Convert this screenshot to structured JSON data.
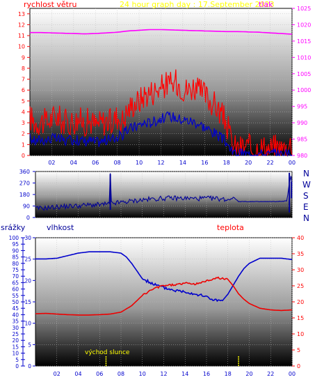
{
  "header": {
    "title": "24 hour graph day : 17.September 2023",
    "wind_label": "rychlost větru",
    "pressure_label": "tlak"
  },
  "compass": [
    "N",
    "W",
    "S",
    "E",
    "N"
  ],
  "bottom_labels": {
    "rain": "srážky",
    "humidity": "vlhkost",
    "temperature": "teplota",
    "sunrise": "východ slunce"
  },
  "colors": {
    "wind": "#ff0000",
    "wind_avg": "#0000cc",
    "pressure": "#ff00ff",
    "direction": "#000099",
    "humidity": "#0000cc",
    "temperature": "#ee0000",
    "sun_marker": "#ffff00",
    "tick_red": "#ff0000",
    "tick_magenta": "#ff00ff",
    "tick_blue": "#0000cc"
  },
  "chart_data": [
    {
      "type": "line",
      "x_ticks": [
        "02",
        "04",
        "06",
        "08",
        "10",
        "12",
        "14",
        "16",
        "18",
        "20",
        "22",
        "00"
      ],
      "y_left_ticks": [
        "0",
        "1",
        "2",
        "3",
        "4",
        "5",
        "6",
        "7",
        "8",
        "9",
        "10",
        "11",
        "12",
        "13"
      ],
      "y_right_ticks": [
        "980",
        "985",
        "990",
        "995",
        "1000",
        "1005",
        "1010",
        "1015",
        "1020",
        "1025"
      ],
      "ylim_left": [
        0,
        13.5
      ],
      "ylim_right": [
        980,
        1025
      ],
      "series": [
        {
          "name": "rychlost větru",
          "key": "gust",
          "x": [
            0,
            0.5,
            1,
            1.5,
            2,
            2.5,
            3,
            3.5,
            4,
            4.5,
            5,
            5.5,
            6,
            6.5,
            7,
            7.5,
            8,
            8.5,
            9,
            9.5,
            10,
            10.5,
            11,
            11.5,
            12,
            12.5,
            13,
            13.5,
            14,
            14.5,
            15,
            15.5,
            16,
            16.5,
            17,
            17.5,
            18,
            18.5,
            19,
            19.5,
            20,
            20.5,
            21,
            21.5,
            22,
            22.5,
            23,
            23.5,
            24
          ],
          "values": [
            3.5,
            3.0,
            3.2,
            3.0,
            3.4,
            3.6,
            3.1,
            3.0,
            3.2,
            3.3,
            3.0,
            3.2,
            2.8,
            3.0,
            3.2,
            3.0,
            3.6,
            3.2,
            4.2,
            4.8,
            5.0,
            5.6,
            5.8,
            6.0,
            6.2,
            6.6,
            6.4,
            6.8,
            6.2,
            6.0,
            6.4,
            5.8,
            5.6,
            5.0,
            4.6,
            3.8,
            3.0,
            1.0,
            0.6,
            0.8,
            0.7,
            0.6,
            0.8,
            0.7,
            0.6,
            0.8,
            0.6,
            0.7,
            1.2
          ]
        },
        {
          "name": "",
          "key": "avg",
          "x": [
            0,
            0.5,
            1,
            1.5,
            2,
            2.5,
            3,
            3.5,
            4,
            4.5,
            5,
            5.5,
            6,
            6.5,
            7,
            7.5,
            8,
            8.5,
            9,
            9.5,
            10,
            10.5,
            11,
            11.5,
            12,
            12.5,
            13,
            13.5,
            14,
            14.5,
            15,
            15.5,
            16,
            16.5,
            17,
            17.5,
            18,
            18.5,
            19,
            19.5,
            20,
            20.5,
            21,
            21.5,
            22,
            22.5,
            23,
            23.5,
            24
          ],
          "values": [
            1.6,
            1.3,
            1.5,
            1.4,
            1.6,
            1.5,
            1.4,
            1.3,
            1.5,
            1.4,
            1.3,
            1.4,
            1.2,
            1.3,
            1.4,
            1.5,
            1.7,
            1.9,
            2.4,
            2.6,
            2.8,
            3.0,
            3.0,
            3.2,
            3.4,
            3.5,
            3.6,
            3.4,
            3.3,
            3.2,
            3.1,
            2.9,
            2.6,
            2.3,
            2.0,
            1.6,
            1.2,
            0.3,
            0.1,
            0.2,
            0.1,
            0.1,
            0.2,
            0.1,
            0.1,
            0.2,
            0.1,
            0.1,
            0.3
          ]
        },
        {
          "name": "tlak",
          "key": "pressure",
          "x": [
            0,
            1,
            2,
            3,
            4,
            5,
            6,
            7,
            8,
            9,
            10,
            11,
            12,
            13,
            14,
            15,
            16,
            17,
            18,
            19,
            20,
            21,
            22,
            23,
            24
          ],
          "values": [
            1017.6,
            1017.6,
            1017.5,
            1017.4,
            1017.3,
            1017.2,
            1017.3,
            1017.5,
            1017.7,
            1018.1,
            1018.3,
            1018.5,
            1018.5,
            1018.4,
            1018.3,
            1018.2,
            1018.1,
            1018.0,
            1017.9,
            1017.9,
            1017.8,
            1017.7,
            1017.5,
            1017.3,
            1017.1
          ]
        }
      ]
    },
    {
      "type": "line",
      "x_ticks": [
        "02",
        "04",
        "06",
        "08",
        "10",
        "12",
        "14",
        "16",
        "18",
        "20",
        "22",
        "00"
      ],
      "y_ticks": [
        "0",
        "90",
        "180",
        "270",
        "360"
      ],
      "ylim": [
        0,
        360
      ],
      "series": [
        {
          "name": "",
          "key": "direction",
          "x": [
            0,
            1,
            2,
            3,
            4,
            5,
            6,
            6.9,
            7,
            7.1,
            8,
            9,
            10,
            11,
            12,
            13,
            14,
            15,
            16,
            17,
            18,
            18.5,
            19,
            20,
            21,
            22,
            23,
            23.5,
            23.9,
            24
          ],
          "values": [
            70,
            75,
            82,
            88,
            92,
            98,
            100,
            105,
            335,
            110,
            118,
            128,
            138,
            145,
            150,
            152,
            150,
            148,
            150,
            148,
            140,
            160,
            125,
            124,
            124,
            124,
            126,
            130,
            320,
            270
          ]
        }
      ]
    },
    {
      "type": "line",
      "x_ticks": [
        "02",
        "04",
        "06",
        "08",
        "10",
        "12",
        "14",
        "16",
        "18",
        "20",
        "22",
        "00"
      ],
      "y_rain_ticks": [
        "0",
        "5",
        "10",
        "15",
        "20",
        "25",
        "30",
        "35",
        "40",
        "45",
        "50",
        "55",
        "60",
        "65",
        "70",
        "75",
        "80",
        "85",
        "90",
        "95",
        "100"
      ],
      "y_humidity_ticks": [
        "0",
        "5",
        "10",
        "15",
        "20",
        "25",
        "30"
      ],
      "y_temp_ticks": [
        "0",
        "5",
        "10",
        "15",
        "20",
        "25",
        "30",
        "35",
        "40"
      ],
      "ylim_humidity": [
        0,
        100
      ],
      "ylim_temp": [
        0,
        40
      ],
      "sunrise_hour": 6.6,
      "sunset_hour": 19.0,
      "series": [
        {
          "name": "vlhkost",
          "key": "humidity",
          "x": [
            0,
            1,
            2,
            3,
            4,
            5,
            6,
            7,
            8,
            8.5,
            9,
            9.5,
            10,
            11,
            12,
            13,
            14,
            15,
            16,
            16.5,
            17,
            17.5,
            18,
            18.5,
            19,
            19.5,
            20,
            21,
            22,
            23,
            24
          ],
          "values": [
            83.5,
            83.5,
            84,
            86,
            88,
            89,
            89,
            89,
            88,
            85,
            80,
            74,
            68,
            64,
            61,
            59,
            58,
            56,
            54,
            52,
            51,
            51,
            56,
            63,
            70,
            76,
            80,
            84,
            84,
            84,
            83
          ]
        },
        {
          "name": "teplota",
          "key": "temperature",
          "x": [
            0,
            1,
            2,
            3,
            4,
            5,
            6,
            7,
            8,
            9,
            10,
            11,
            12,
            13,
            14,
            15,
            16,
            17,
            18,
            18.5,
            19,
            19.5,
            20,
            21,
            22,
            23,
            24
          ],
          "values": [
            16.3,
            16.4,
            16.2,
            16.0,
            15.9,
            15.9,
            16.0,
            16.2,
            16.8,
            18.8,
            22.0,
            24.0,
            25.1,
            25.3,
            25.8,
            25.6,
            26.5,
            27.5,
            27.0,
            25.0,
            22.5,
            20.8,
            19.5,
            18.0,
            17.5,
            17.3,
            17.5
          ]
        }
      ]
    }
  ]
}
